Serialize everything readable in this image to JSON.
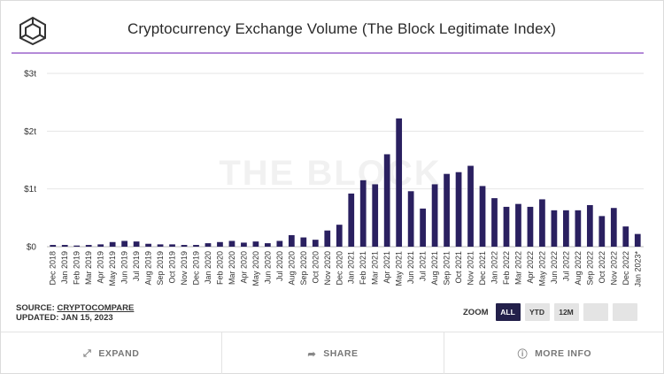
{
  "header": {
    "title": "Cryptocurrency Exchange Volume (The Block Legitimate Index)",
    "logo_icon": "cube-logo-icon"
  },
  "watermark": "THE BLOCK",
  "chart_data": {
    "type": "bar",
    "title": "Cryptocurrency Exchange Volume (The Block Legitimate Index)",
    "xlabel": "",
    "ylabel": "",
    "ylim": [
      0,
      3
    ],
    "y_ticks": [
      "$0",
      "$1t",
      "$2t",
      "$3t"
    ],
    "y_tick_values": [
      0,
      1,
      2,
      3
    ],
    "grid": true,
    "bar_color": "#2a2060",
    "categories": [
      "Dec 2018",
      "Jan 2019",
      "Feb 2019",
      "Mar 2019",
      "Apr 2019",
      "May 2019",
      "Jun 2019",
      "Jul 2019",
      "Aug 2019",
      "Sep 2019",
      "Oct 2019",
      "Nov 2019",
      "Dec 2019",
      "Jan 2020",
      "Feb 2020",
      "Mar 2020",
      "Apr 2020",
      "May 2020",
      "Jun 2020",
      "Jul 2020",
      "Aug 2020",
      "Sep 2020",
      "Oct 2020",
      "Nov 2020",
      "Dec 2020",
      "Jan 2021",
      "Feb 2021",
      "Mar 2021",
      "Apr 2021",
      "May 2021",
      "Jun 2021",
      "Jul 2021",
      "Aug 2021",
      "Sep 2021",
      "Oct 2021",
      "Nov 2021",
      "Dec 2021",
      "Jan 2022",
      "Feb 2022",
      "Mar 2022",
      "Apr 2022",
      "May 2022",
      "Jun 2022",
      "Jul 2022",
      "Aug 2022",
      "Sep 2022",
      "Oct 2022",
      "Nov 2022",
      "Dec 2022",
      "Jan 2023*"
    ],
    "values": [
      0.03,
      0.03,
      0.02,
      0.03,
      0.04,
      0.08,
      0.1,
      0.09,
      0.05,
      0.04,
      0.04,
      0.03,
      0.03,
      0.06,
      0.08,
      0.1,
      0.07,
      0.09,
      0.06,
      0.1,
      0.2,
      0.16,
      0.12,
      0.28,
      0.38,
      0.92,
      1.15,
      1.08,
      1.6,
      2.22,
      0.96,
      0.66,
      1.08,
      1.26,
      1.29,
      1.4,
      1.05,
      0.84,
      0.69,
      0.74,
      0.69,
      0.82,
      0.63,
      0.63,
      0.63,
      0.72,
      0.53,
      0.67,
      0.35,
      0.22
    ]
  },
  "source": {
    "label": "SOURCE:",
    "link": "CRYPTOCOMPARE",
    "updated": "UPDATED: JAN 15, 2023"
  },
  "zoom": {
    "label": "ZOOM",
    "buttons": [
      "ALL",
      "YTD",
      "12M",
      "",
      ""
    ],
    "active": "ALL"
  },
  "footer": {
    "expand": "EXPAND",
    "expand_icon": "expand-arrows-icon",
    "share": "SHARE",
    "share_icon": "share-arrow-icon",
    "more_info": "MORE INFO",
    "more_info_icon": "info-circle-icon"
  }
}
